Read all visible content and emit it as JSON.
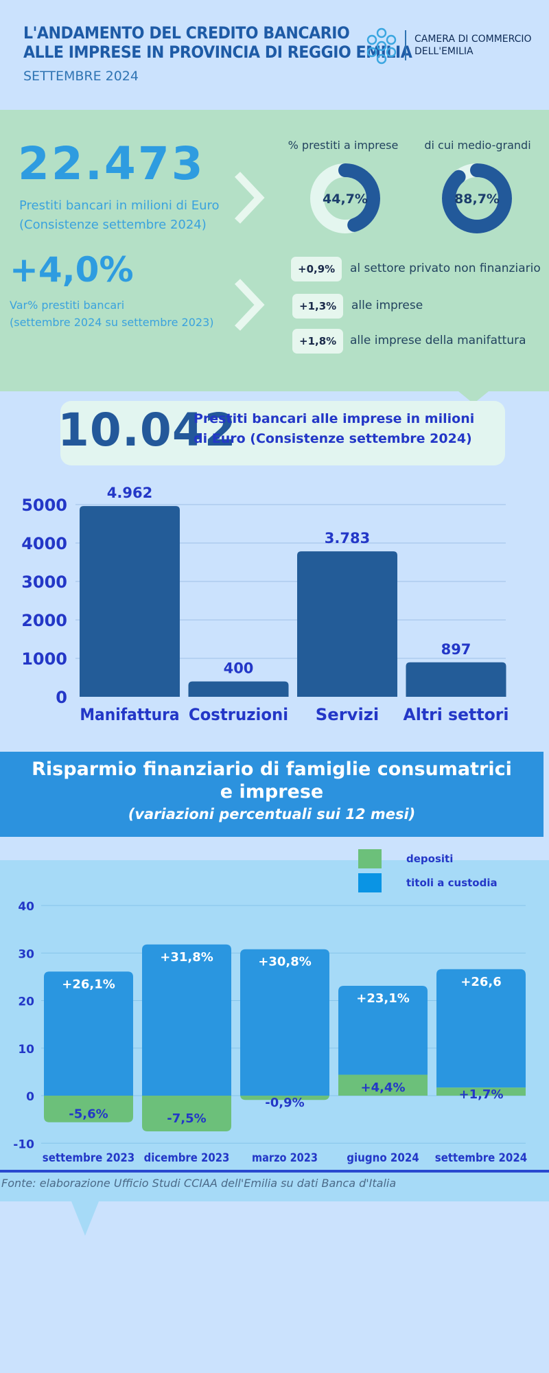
{
  "header": {
    "title_line1": "L'ANDAMENTO DEL CREDITO BANCARIO",
    "title_line2": "ALLE IMPRESE IN PROVINCIA DI REGGIO EMILIA",
    "subtitle": "SETTEMBRE 2024",
    "org_line1": "CAMERA DI COMMERCIO",
    "org_line2": "DELL'EMILIA"
  },
  "summary": {
    "loans_value": "22.473",
    "loans_desc_line1": "Prestiti bancari in milioni di Euro",
    "loans_desc_line2": "(Consistenze settembre 2024)",
    "var_value": "+4,0%",
    "var_desc_line1": "Var% prestiti bancari",
    "var_desc_line2": "(settembre 2024 su settembre 2023)",
    "donut1_label": "%  prestiti a imprese",
    "donut1_value": "44,7%",
    "donut1_fraction": 0.447,
    "donut2_label": "di cui medio-grandi",
    "donut2_value": "88,7%",
    "donut2_fraction": 0.887,
    "pills": [
      {
        "value": "+0,9%",
        "text": "al settore privato non finanziario"
      },
      {
        "value": "+1,3%",
        "text": "alle imprese"
      },
      {
        "value": "+1,8%",
        "text": "alle imprese della manifattura"
      }
    ]
  },
  "box": {
    "value": "10.042",
    "desc_line1": "Prestiti bancari alle imprese in milioni",
    "desc_line2": "di Euro (Consistenze settembre 2024)"
  },
  "chart_data": [
    {
      "type": "bar",
      "categories": [
        "Manifattura",
        "Costruzioni",
        "Servizi",
        "Altri settori"
      ],
      "values": [
        4962,
        400,
        3783,
        897
      ],
      "value_labels": [
        "4.962",
        "400",
        "3.783",
        "897"
      ],
      "yticks": [
        0,
        1000,
        2000,
        3000,
        4000,
        5000
      ],
      "ylim": [
        0,
        5000
      ],
      "grid": true,
      "color": "#235c98"
    },
    {
      "type": "bar",
      "title_line1": "Risparmio finanziario di famiglie consumatrici",
      "title_line2": "e imprese",
      "subtitle": "(variazioni percentuali sui 12 mesi)",
      "categories": [
        "settembre 2023",
        "dicembre 2023",
        "marzo 2023",
        "giugno 2024",
        "settembre 2024"
      ],
      "series": [
        {
          "name": "depositi",
          "color": "#6cc07a",
          "values": [
            -5.6,
            -7.5,
            -0.9,
            4.4,
            1.7
          ],
          "labels": [
            "-5,6%",
            "-7,5%",
            "-0,9%",
            "+4,4%",
            "+1,7%"
          ]
        },
        {
          "name": "titoli a custodia",
          "color": "#2a96e0",
          "values": [
            26.1,
            31.8,
            30.8,
            23.1,
            26.6
          ],
          "labels": [
            "+26,1%",
            "+31,8%",
            "+30,8%",
            "+23,1%",
            "+26,6"
          ]
        }
      ],
      "yticks": [
        -10,
        0,
        10,
        20,
        30,
        40
      ],
      "ylim": [
        -10,
        40
      ],
      "legend": "top-right",
      "grid": true
    }
  ],
  "source": "Fonte: elaborazione Ufficio Studi CCIAA dell'Emilia su dati Banca d'Italia"
}
